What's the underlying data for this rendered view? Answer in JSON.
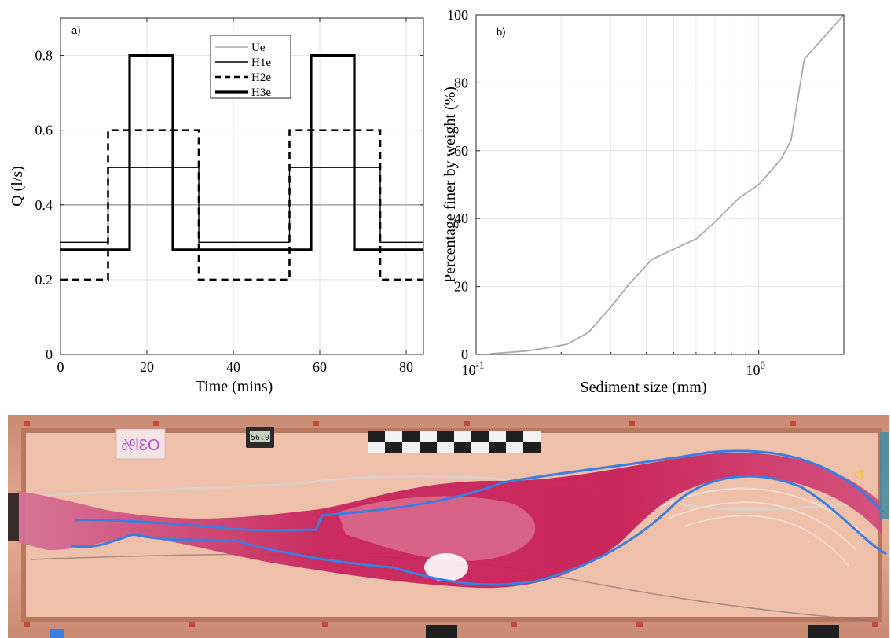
{
  "chart_data": [
    {
      "panel": "a)",
      "type": "line",
      "xlabel": "Time (mins)",
      "ylabel": "Q (l/s)",
      "xlim": [
        0,
        84
      ],
      "ylim": [
        0,
        0.9
      ],
      "xticks": [
        0,
        20,
        40,
        60,
        80
      ],
      "yticks": [
        0,
        0.2,
        0.4,
        0.6,
        0.8
      ],
      "yticklabels": [
        "0",
        "0.2",
        "0.4",
        "0.6",
        "0.8"
      ],
      "grid": true,
      "legend_position": "top-center",
      "series": [
        {
          "name": "Ue",
          "color": "#aaaaaa",
          "width": 1.6,
          "dash": "",
          "x": [
            0,
            84
          ],
          "y": [
            0.4,
            0.4
          ]
        },
        {
          "name": "H1e",
          "color": "#000000",
          "width": 1.4,
          "dash": "",
          "x": [
            0,
            11,
            11,
            32,
            32,
            53,
            53,
            74,
            74,
            84
          ],
          "y": [
            0.3,
            0.3,
            0.5,
            0.5,
            0.3,
            0.3,
            0.5,
            0.5,
            0.3,
            0.3
          ]
        },
        {
          "name": "H2e",
          "color": "#000000",
          "width": 2.6,
          "dash": "9,6",
          "x": [
            0,
            11,
            11,
            32,
            32,
            53,
            53,
            74,
            74,
            84
          ],
          "y": [
            0.2,
            0.2,
            0.6,
            0.6,
            0.2,
            0.2,
            0.6,
            0.6,
            0.2,
            0.2
          ]
        },
        {
          "name": "H3e",
          "color": "#000000",
          "width": 3.2,
          "dash": "",
          "x": [
            0,
            16,
            16,
            26,
            26,
            58,
            58,
            68,
            68,
            84
          ],
          "y": [
            0.28,
            0.28,
            0.8,
            0.8,
            0.28,
            0.28,
            0.8,
            0.8,
            0.28,
            0.28
          ]
        }
      ]
    },
    {
      "panel": "b)",
      "type": "line",
      "xscale": "log",
      "xlabel": "Sediment size (mm)",
      "ylabel": "Percentage finer by weight (%)",
      "xlim": [
        0.1,
        2
      ],
      "ylim": [
        0,
        100
      ],
      "xticks": [
        0.1,
        1
      ],
      "xtick_base": "10",
      "xtick_exponents": [
        "-1",
        "0"
      ],
      "yticks": [
        0,
        20,
        40,
        60,
        80,
        100
      ],
      "grid": true,
      "series": [
        {
          "color": "#aaaaaa",
          "width": 1.8,
          "x": [
            0.112,
            0.125,
            0.15,
            0.18,
            0.21,
            0.25,
            0.3,
            0.35,
            0.42,
            0.5,
            0.6,
            0.7,
            0.85,
            1.0,
            1.2,
            1.3,
            1.45,
            2.0
          ],
          "y": [
            0.2,
            0.5,
            1,
            2,
            3,
            6.5,
            14,
            21,
            28,
            31,
            34,
            39,
            46,
            50,
            57.5,
            63,
            87,
            100
          ]
        }
      ]
    }
  ],
  "photo": {
    "panel": "c)",
    "sign_text": "O3l%",
    "display_text": "56.9"
  }
}
